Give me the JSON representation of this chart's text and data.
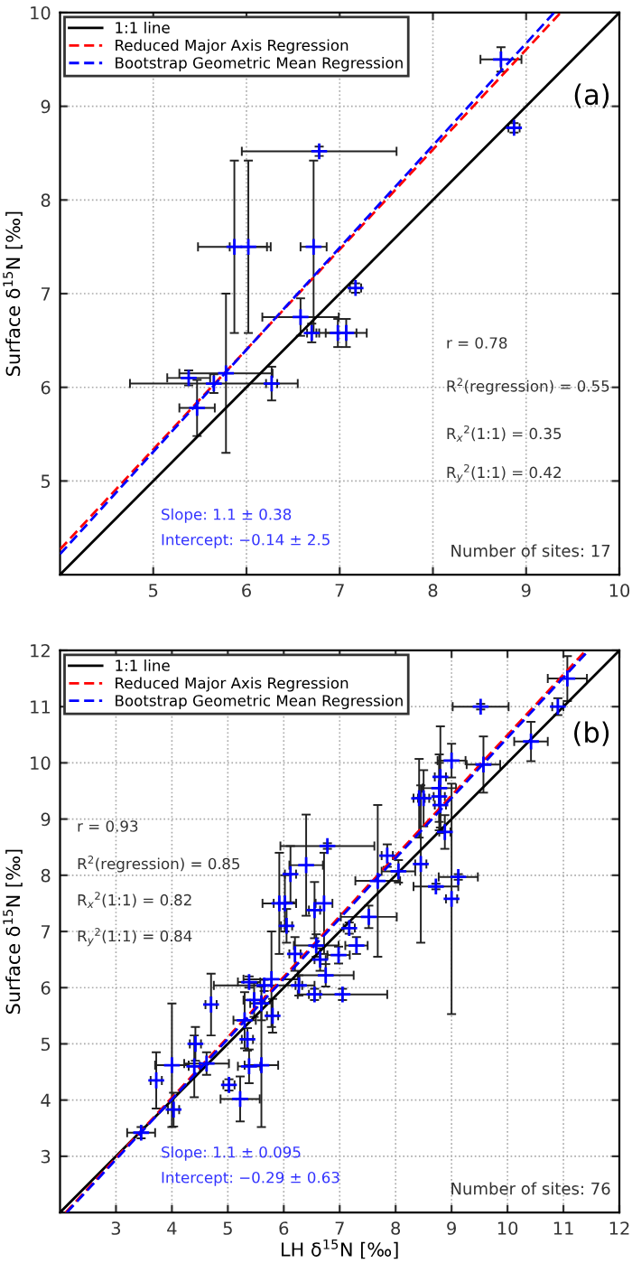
{
  "chart_data": [
    {
      "type": "scatter",
      "ylabel": "Surface δ$^{15}$N [‰]",
      "xlim": [
        4,
        10
      ],
      "ylim": [
        4,
        10
      ],
      "xticks": [
        5,
        6,
        7,
        8,
        9,
        10
      ],
      "yticks": [
        5,
        6,
        7,
        8,
        9,
        10
      ],
      "grid": true,
      "legend": "top left",
      "annotations": [
        "(a)",
        "r = 0.78",
        "R$^{2}$(regression) = 0.55",
        "R$_{x}$$^{2}$(1:1) = 0.35",
        "R$_{y}$$^{2}$(1:1) = 0.42",
        "Slope: 1.1 ± 0.38",
        "Intercept: −0.14 ± 2.5",
        "Number of sites: 17"
      ],
      "series": [
        {
          "type": "line",
          "name": "1:1 line",
          "color": "#000000",
          "line_style": "solid",
          "x": [
            4,
            10
          ],
          "values": [
            4,
            10
          ]
        },
        {
          "type": "line",
          "name": "Reduced Major Axis Regression",
          "color": "#ff0000",
          "line_style": "dashed",
          "x": [
            4,
            9.37
          ],
          "values": [
            4.27,
            10
          ]
        },
        {
          "type": "line",
          "name": "Bootstrap Geometric Mean Regression",
          "color": "#0000ff",
          "line_style": "dashed",
          "x": [
            4,
            9.3
          ],
          "values": [
            4.22,
            10
          ]
        },
        {
          "color": "#0000ff",
          "marker": "cross",
          "x": [
            8.73,
            8.87,
            6.78,
            5.87,
            6.02,
            6.72,
            7.17,
            6.58,
            6.98,
            7.07,
            6.7,
            5.65,
            6.27,
            5.38,
            5.78,
            5.47
          ],
          "values": [
            9.5,
            8.77,
            8.52,
            7.5,
            7.5,
            7.5,
            7.06,
            6.75,
            6.58,
            6.58,
            6.58,
            6.04,
            6.04,
            6.1,
            6.15,
            5.78
          ],
          "xerrors": [
            0.22,
            0.06,
            0.83,
            0.39,
            0.2,
            0.14,
            0.06,
            0.41,
            0.2,
            0.22,
            0.05,
            0.9,
            0.06,
            0.23,
            0.5,
            0.19
          ],
          "errors": [
            0.13,
            0.05,
            0.05,
            0.92,
            0.92,
            0.92,
            0.05,
            0.2,
            0.15,
            0.15,
            0.1,
            0.1,
            0.18,
            0.08,
            0.85,
            0.3
          ]
        }
      ]
    },
    {
      "type": "scatter",
      "xlabel": "LH δ$^{15}$N [‰]",
      "ylabel": "Surface δ$^{15}$N [‰]",
      "xlim": [
        2,
        12
      ],
      "ylim": [
        2,
        12
      ],
      "xticks": [
        3,
        4,
        5,
        6,
        7,
        8,
        9,
        10,
        11,
        12
      ],
      "yticks": [
        3,
        4,
        5,
        6,
        7,
        8,
        9,
        10,
        11,
        12
      ],
      "grid": true,
      "legend": "top left",
      "annotations": [
        "(b)",
        "r = 0.93",
        "R$^{2}$(regression) = 0.85",
        "R$_{x}$$^{2}$(1:1) = 0.82",
        "R$_{y}$$^{2}$(1:1) = 0.84",
        "Slope: 1.1 ± 0.095",
        "Intercept: −0.29 ± 0.63",
        "Number of sites: 76"
      ],
      "series": [
        {
          "type": "line",
          "name": "1:1 line",
          "color": "#000000",
          "line_style": "solid",
          "x": [
            2,
            12
          ],
          "values": [
            2,
            12
          ]
        },
        {
          "type": "line",
          "name": "Reduced Major Axis Regression",
          "color": "#ff0000",
          "line_style": "dashed",
          "x": [
            2.1,
            11.4
          ],
          "values": [
            2,
            12
          ]
        },
        {
          "type": "line",
          "name": "Bootstrap Geometric Mean Regression",
          "color": "#0000ff",
          "line_style": "dashed",
          "x": [
            2.12,
            11.45
          ],
          "values": [
            2,
            12
          ]
        },
        {
          "color": "#0000ff",
          "marker": "cross",
          "x": [
            11.07,
            10.9,
            9.52,
            10.42,
            9.0,
            9.57,
            8.8,
            8.78,
            8.42,
            8.5,
            8.78,
            8.8,
            8.88,
            7.85,
            8.45,
            8.05,
            6.78,
            6.4,
            9.12,
            8.72,
            9.0,
            7.68,
            6.12,
            5.92,
            6.02,
            6.55,
            6.72,
            6.05,
            7.17,
            7.52,
            7.3,
            6.58,
            6.2,
            6.98,
            6.65,
            6.75,
            6.27,
            6.55,
            7.05,
            5.78,
            5.38,
            5.47,
            5.65,
            5.8,
            5.6,
            4.7,
            5.3,
            4.42,
            5.35,
            4.0,
            4.4,
            4.62,
            5.38,
            5.6,
            3.72,
            5.02,
            5.22,
            4.03,
            3.45
          ],
          "values": [
            11.5,
            11.0,
            11.0,
            10.38,
            10.04,
            9.97,
            9.75,
            9.55,
            9.37,
            9.37,
            9.4,
            9.25,
            8.77,
            8.35,
            8.2,
            8.07,
            8.52,
            8.18,
            7.97,
            7.8,
            7.58,
            7.9,
            8.02,
            7.5,
            7.5,
            7.38,
            7.5,
            7.1,
            7.06,
            7.26,
            6.75,
            6.75,
            6.6,
            6.58,
            6.5,
            6.22,
            6.04,
            5.88,
            5.88,
            6.15,
            6.1,
            5.78,
            6.04,
            5.5,
            5.72,
            5.7,
            5.42,
            5.0,
            5.08,
            4.62,
            4.6,
            4.65,
            4.6,
            4.62,
            4.35,
            4.27,
            4.02,
            3.83,
            3.42
          ],
          "xerrors": [
            0.35,
            0.1,
            0.5,
            0.3,
            0.25,
            0.3,
            0.1,
            0.3,
            0.1,
            0.1,
            0.1,
            0.1,
            0.1,
            0.1,
            0.1,
            0.3,
            0.84,
            0.3,
            0.35,
            0.4,
            0.1,
            0.4,
            0.1,
            0.3,
            0.2,
            0.1,
            0.15,
            0.1,
            0.1,
            0.5,
            0.2,
            0.4,
            0.1,
            0.2,
            0.1,
            0.5,
            0.06,
            0.1,
            0.8,
            0.5,
            0.2,
            0.19,
            0.9,
            0.1,
            0.2,
            0.1,
            0.2,
            0.1,
            0.1,
            0.3,
            0.1,
            0.4,
            0.2,
            0.3,
            0.1,
            0.1,
            0.35,
            0.1,
            0.25
          ],
          "errors": [
            0.4,
            0.15,
            0.05,
            0.35,
            0.3,
            0.5,
            0.9,
            0.6,
            0.7,
            0.5,
            0.6,
            0.5,
            0.3,
            0.2,
            1.4,
            0.2,
            0.05,
            0.9,
            0.05,
            0.05,
            2.05,
            1.35,
            0.5,
            0.9,
            0.5,
            0.5,
            0.9,
            0.3,
            0.1,
            0.2,
            0.15,
            0.2,
            0.3,
            0.15,
            0.2,
            0.2,
            0.18,
            0.1,
            0.1,
            0.85,
            0.1,
            0.3,
            0.1,
            0.3,
            0.3,
            0.55,
            0.5,
            0.3,
            0.2,
            1.1,
            0.55,
            0.2,
            0.3,
            1.1,
            0.5,
            0.1,
            0.4,
            0.3,
            0.1
          ]
        }
      ]
    }
  ]
}
